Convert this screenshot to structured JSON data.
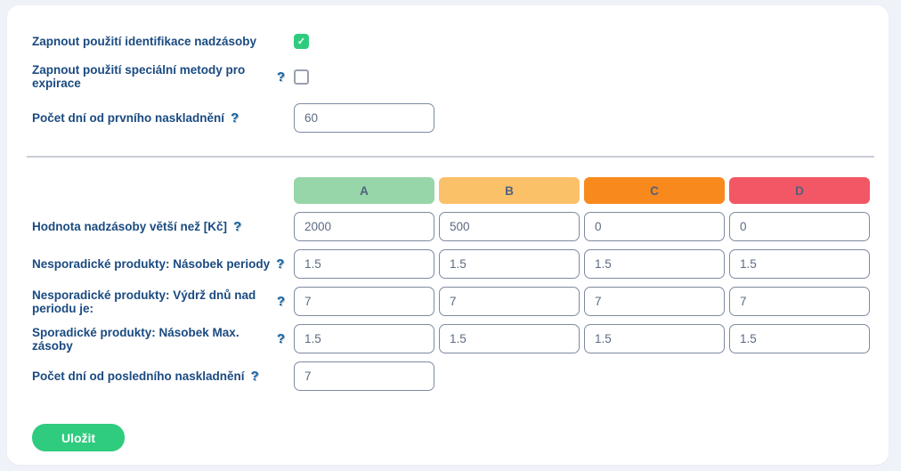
{
  "help_icon": "?",
  "colors": {
    "checkbox_checked": "#2fcb7f",
    "save_button": "#2fcb7f",
    "col_a": "#96d6a8",
    "col_b": "#fbc169",
    "col_c": "#f8891d",
    "col_d": "#f25765"
  },
  "settings": {
    "rows": [
      {
        "label": "Zapnout použití identifikace nadzásoby",
        "control": "checkbox",
        "checked": true
      },
      {
        "label": "Zapnout použití speciální metody pro expirace",
        "control": "checkbox",
        "checked": false
      },
      {
        "label": "Počet dní od prvního naskladnění",
        "control": "input",
        "value": "60"
      }
    ],
    "check_glyph": "✓"
  },
  "matrix": {
    "columns": [
      {
        "label": "A",
        "color": "#96d6a8"
      },
      {
        "label": "B",
        "color": "#fbc169"
      },
      {
        "label": "C",
        "color": "#f8891d"
      },
      {
        "label": "D",
        "color": "#f25765"
      }
    ],
    "rows": [
      {
        "label": "Hodnota nadzásoby větší než [Kč]",
        "values": [
          "2000",
          "500",
          "0",
          "0"
        ]
      },
      {
        "label": "Nesporadické produkty: Násobek periody",
        "values": [
          "1.5",
          "1.5",
          "1.5",
          "1.5"
        ]
      },
      {
        "label": "Nesporadické produkty: Výdrž dnů nad periodu je:",
        "values": [
          "7",
          "7",
          "7",
          "7"
        ]
      },
      {
        "label": "Sporadické produkty: Násobek Max. zásoby",
        "values": [
          "1.5",
          "1.5",
          "1.5",
          "1.5"
        ]
      },
      {
        "label": "Počet dní od posledního naskladnění",
        "values": [
          "7"
        ]
      }
    ]
  },
  "save_button": {
    "label": "Uložit"
  }
}
